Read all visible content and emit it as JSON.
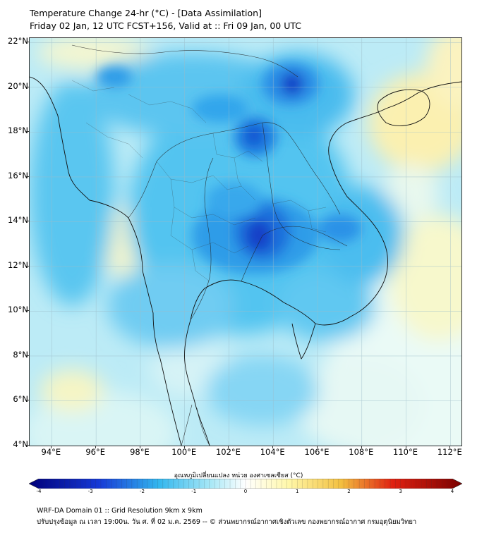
{
  "title": {
    "line1": "Temperature Change 24-hr (°C) - [Data Assimilation]",
    "line2": "Friday 02 Jan, 12 UTC FCST+156, Valid at :: Fri 09 Jan, 00 UTC"
  },
  "map": {
    "lat_labels": [
      "22°N",
      "20°N",
      "18°N",
      "16°N",
      "14°N",
      "12°N",
      "10°N",
      "8°N",
      "6°N",
      "4°N"
    ],
    "lon_labels": [
      "94°E",
      "96°E",
      "98°E",
      "100°E",
      "102°E",
      "104°E",
      "106°E",
      "108°E",
      "110°E",
      "112°E"
    ],
    "lat_range": [
      4,
      22.2
    ],
    "lon_range": [
      93,
      112.5
    ]
  },
  "colorbar": {
    "label": "อุณหภูมิเปลี่ยนแปลง หน่วย องศาเซลเซียส (°C)",
    "min": -4,
    "max": 4,
    "tick_labels": [
      "-4",
      "-3",
      "-2",
      "-1",
      "0",
      "1",
      "2",
      "3",
      "4"
    ],
    "colors": {
      "deep_blue": "#00007a",
      "blue": "#1538d6",
      "light_blue": "#33b7ee",
      "cyan": "#a9e8f6",
      "white": "#ffffff",
      "yellow": "#fff7a8",
      "orange": "#f3a020",
      "red": "#e02010",
      "dark_red": "#7a0000"
    }
  },
  "footer": {
    "line1": "WRF-DA Domain 01 :: Grid Resolution 9km x 9km",
    "line2": "ปรับปรุงข้อมูล ณ เวลา 19:00น. วัน ศ. ที่ 02 ม.ค. 2569 -- © ส่วนพยากรณ์อากาศเชิงตัวเลข กองพยากรณ์อากาศ กรมอุตุนิยมวิทยา"
  }
}
